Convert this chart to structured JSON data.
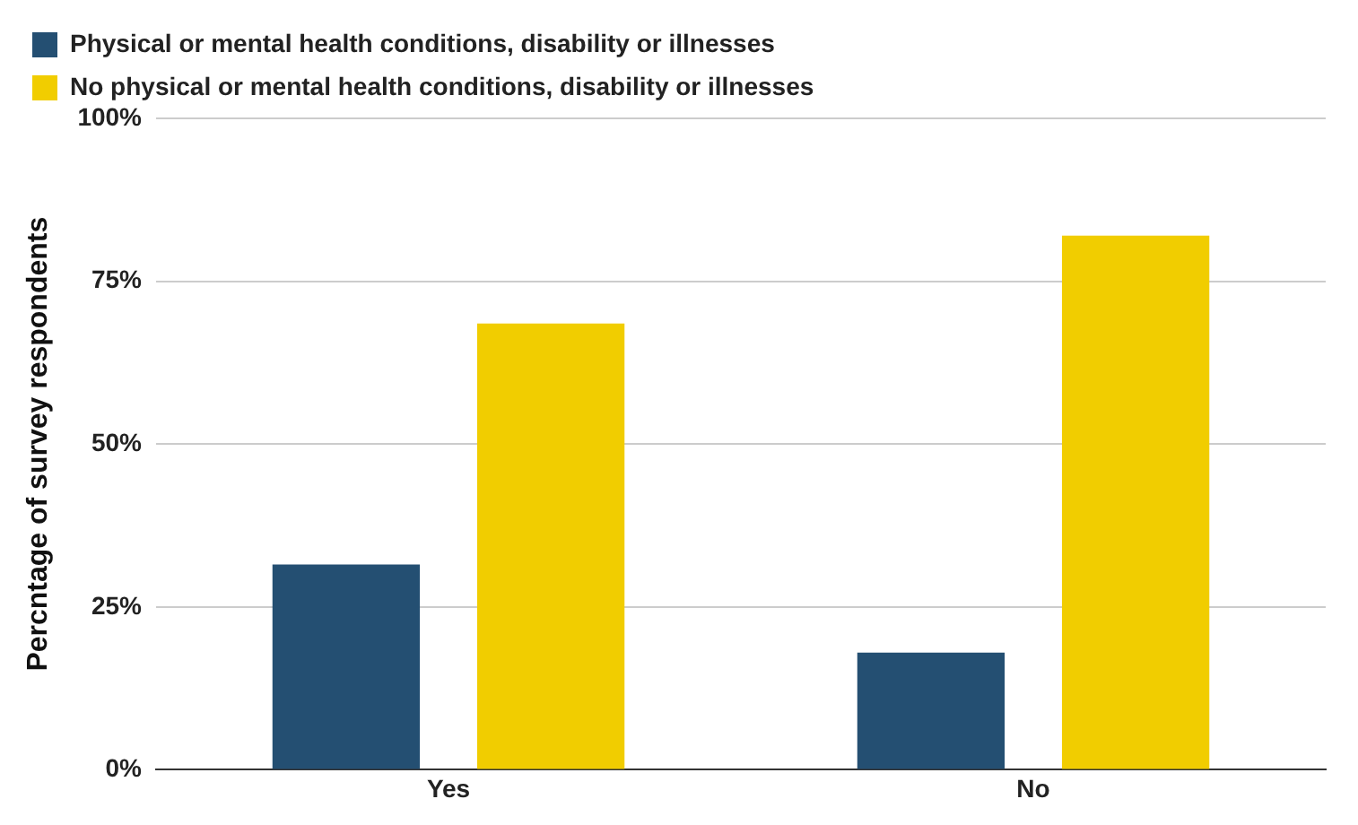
{
  "chart_data": {
    "type": "bar",
    "ylabel": "Percntage of survey respondents",
    "categories": [
      "Yes",
      "No"
    ],
    "series": [
      {
        "name": "Physical or mental health conditions, disability or illnesses",
        "color": "#244f72",
        "values": [
          31.5,
          18
        ]
      },
      {
        "name": "No physical or mental health conditions, disability or illnesses",
        "color": "#f1cd00",
        "values": [
          68.5,
          82
        ]
      }
    ],
    "ylim": [
      0,
      100
    ],
    "yticks": [
      {
        "value": 0,
        "label": "0%"
      },
      {
        "value": 25,
        "label": "25%"
      },
      {
        "value": 50,
        "label": "50%"
      },
      {
        "value": 75,
        "label": "75%"
      },
      {
        "value": 100,
        "label": "100%"
      }
    ],
    "grid": "y",
    "legend": "top"
  }
}
